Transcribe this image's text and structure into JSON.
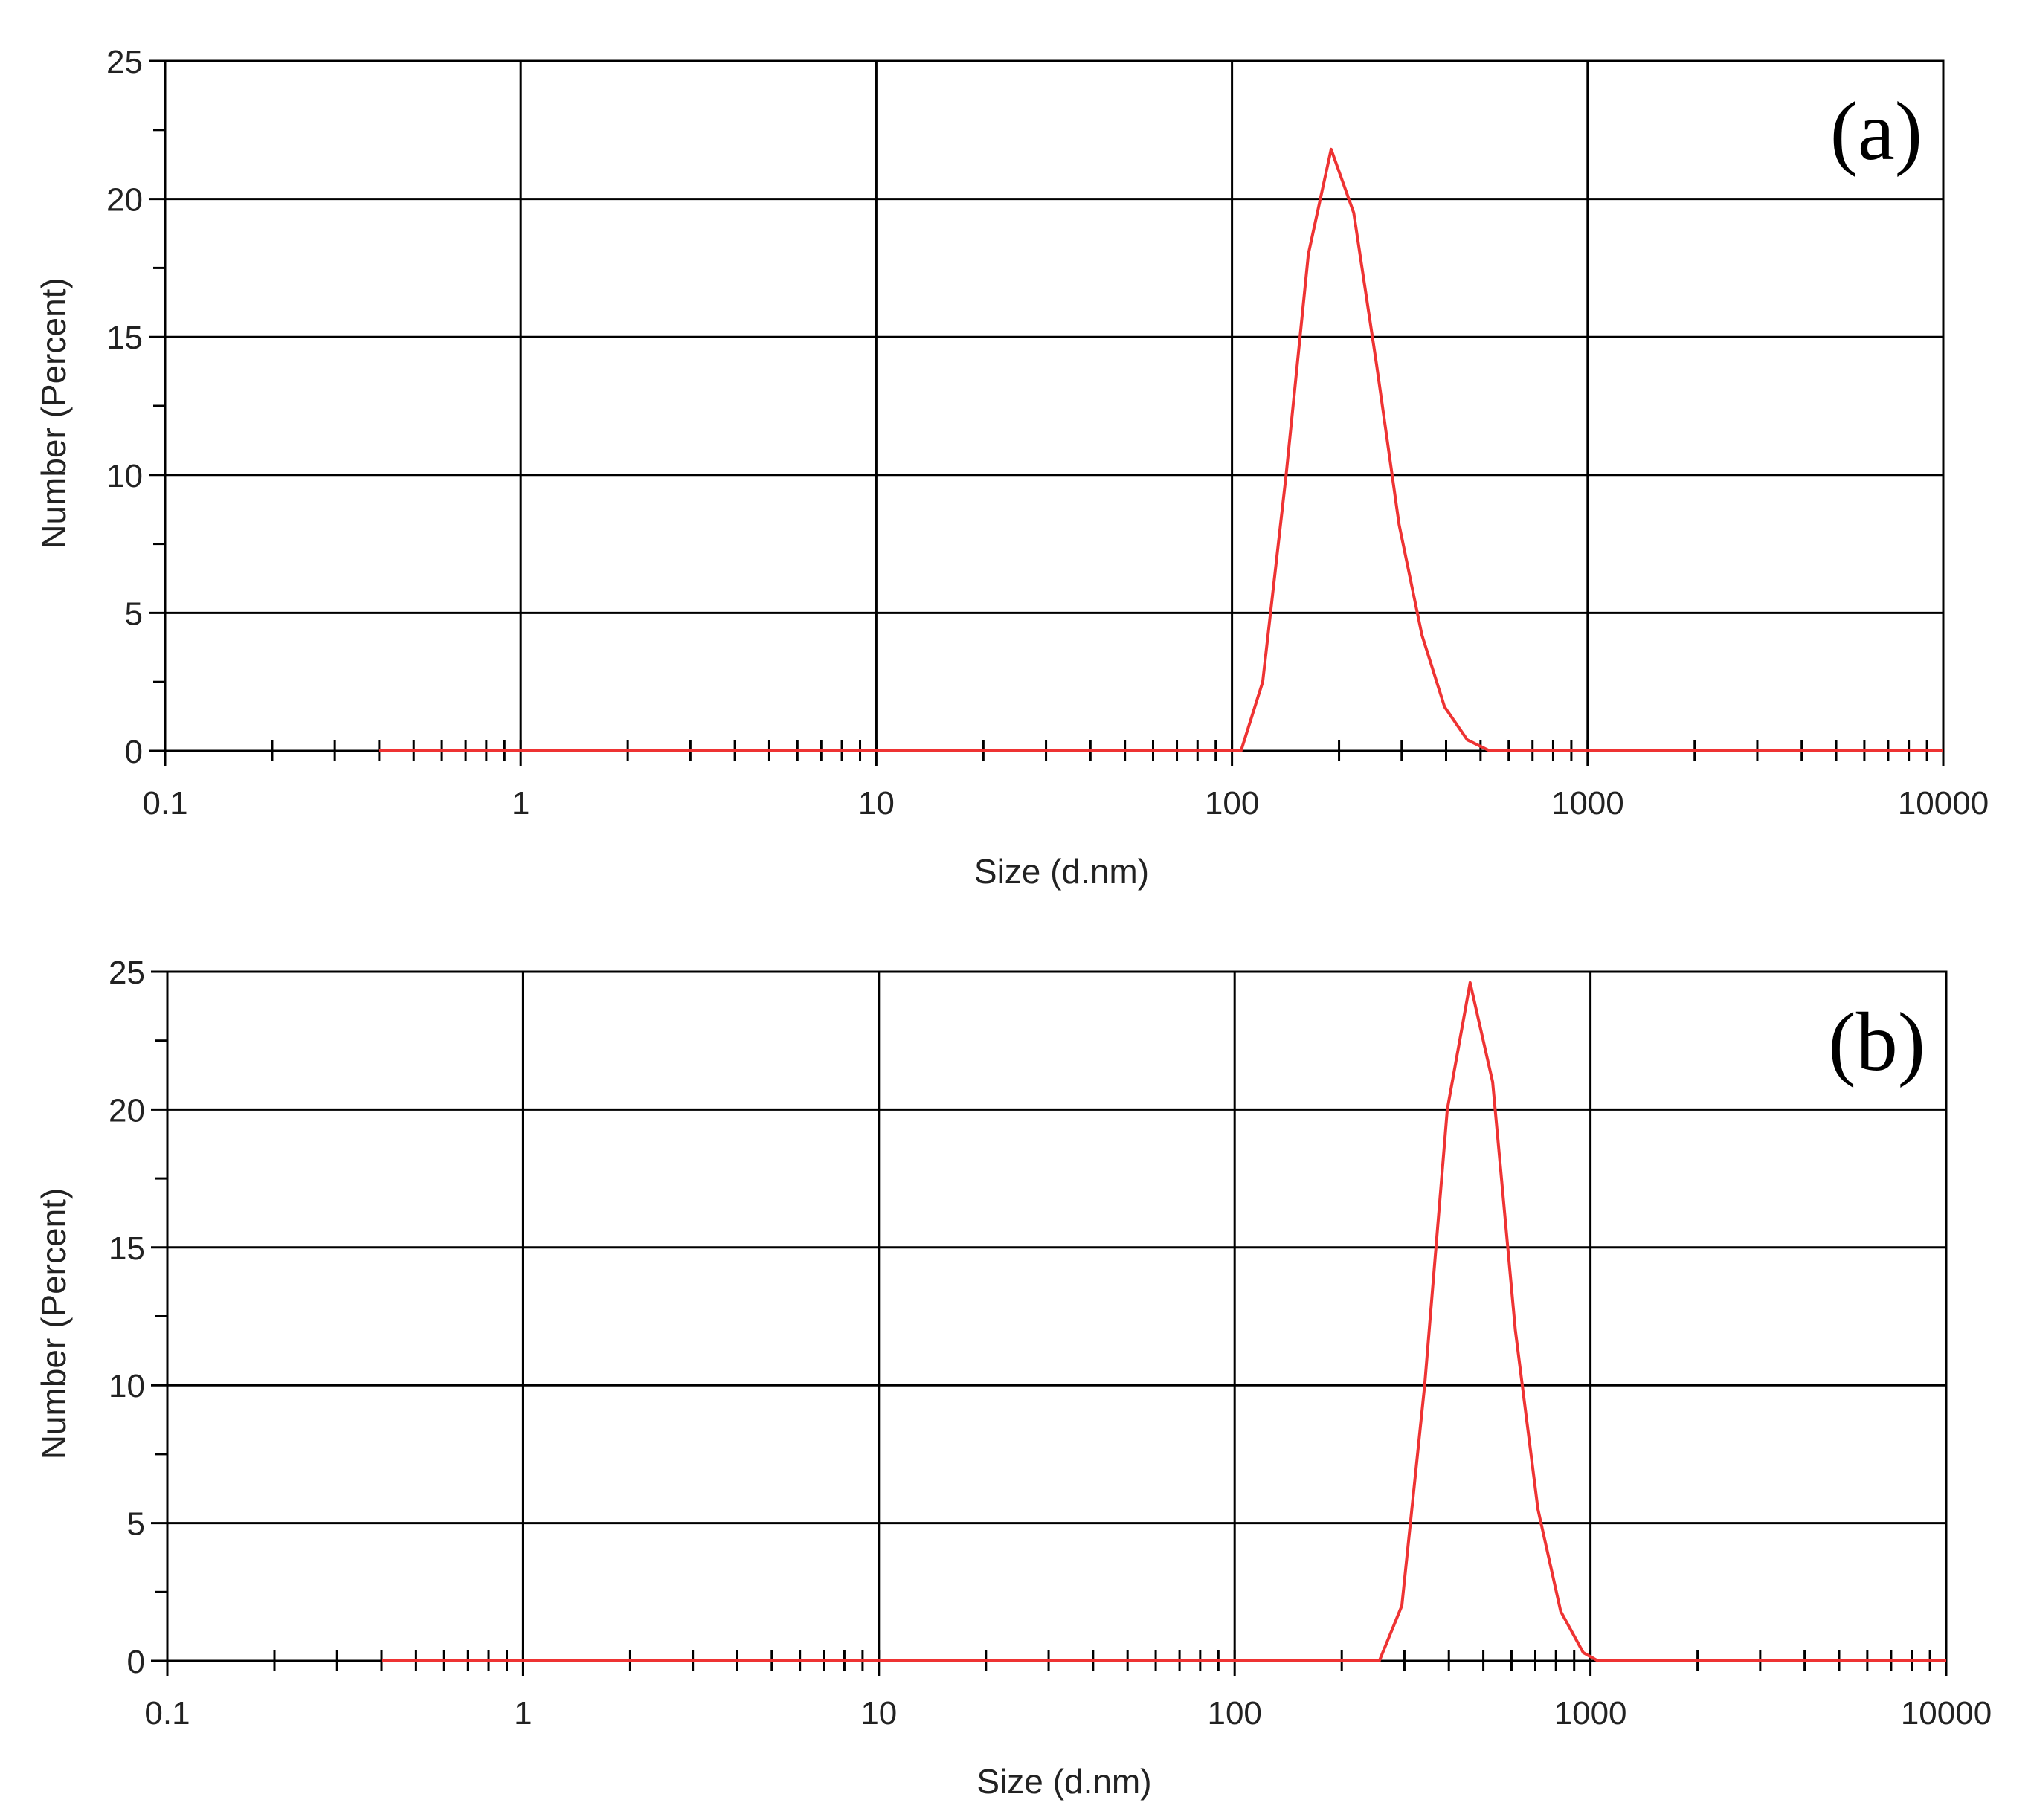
{
  "chart_data": [
    {
      "type": "line",
      "panel_label": "(a)",
      "xlabel": "Size (d.nm)",
      "ylabel": "Number (Percent)",
      "xscale": "log",
      "xlim": [
        0.1,
        10000
      ],
      "ylim": [
        0,
        25
      ],
      "x_ticks": [
        0.1,
        1,
        10,
        100,
        1000,
        10000
      ],
      "x_tick_labels": [
        "0.1",
        "1",
        "10",
        "100",
        "1000",
        "10000"
      ],
      "y_ticks": [
        0,
        5,
        10,
        15,
        20,
        25
      ],
      "y_tick_labels": [
        "0",
        "5",
        "10",
        "15",
        "20",
        "25"
      ],
      "grid": true,
      "legend": "none",
      "line_color": "#ee3333",
      "series": [
        {
          "x": [
            0.4,
            1,
            10,
            100,
            106,
            122,
            142,
            164,
            190,
            220,
            255,
            295,
            342,
            396,
            459,
            531,
            600,
            1000,
            10000
          ],
          "y": [
            0,
            0,
            0,
            0,
            0,
            2.5,
            10,
            18,
            21.8,
            19.5,
            14,
            8.2,
            4.2,
            1.6,
            0.4,
            0,
            0,
            0,
            0
          ]
        }
      ]
    },
    {
      "type": "line",
      "panel_label": "(b)",
      "xlabel": "Size (d.nm)",
      "ylabel": "Number (Percent)",
      "xscale": "log",
      "xlim": [
        0.1,
        10000
      ],
      "ylim": [
        0,
        25
      ],
      "x_ticks": [
        0.1,
        1,
        10,
        100,
        1000,
        10000
      ],
      "x_tick_labels": [
        "0.1",
        "1",
        "10",
        "100",
        "1000",
        "10000"
      ],
      "y_ticks": [
        0,
        5,
        10,
        15,
        20,
        25
      ],
      "y_tick_labels": [
        "0",
        "5",
        "10",
        "15",
        "20",
        "25"
      ],
      "grid": true,
      "legend": "none",
      "line_color": "#ee3333",
      "series": [
        {
          "x": [
            0.4,
            1,
            10,
            100,
            255,
            295,
            342,
            396,
            459,
            531,
            615,
            712,
            825,
            955,
            1050,
            10000
          ],
          "y": [
            0,
            0,
            0,
            0,
            0,
            2,
            10,
            20,
            24.6,
            21,
            12,
            5.5,
            1.8,
            0.3,
            0,
            0
          ]
        }
      ]
    }
  ]
}
